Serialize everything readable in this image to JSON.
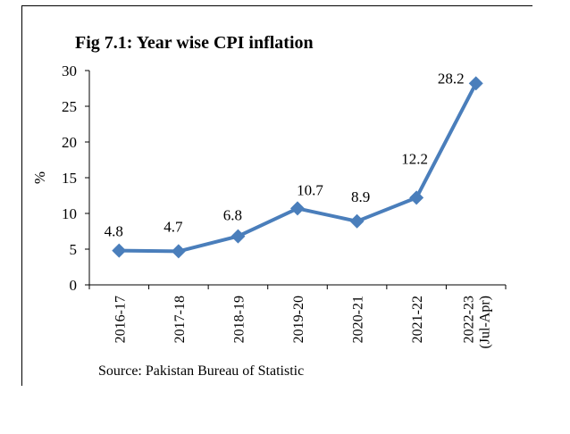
{
  "chart_data": {
    "type": "line",
    "title": "Fig 7.1: Year wise CPI inflation",
    "ylabel": "%",
    "xlabel": "",
    "ylim": [
      0,
      30
    ],
    "yticks": [
      "0",
      "5",
      "10",
      "15",
      "20",
      "25",
      "30"
    ],
    "categories": [
      [
        "2016-17"
      ],
      [
        "2017-18"
      ],
      [
        "2018-19"
      ],
      [
        "2019-20"
      ],
      [
        "2020-21"
      ],
      [
        "2021-22"
      ],
      [
        "2022-23",
        "(Jul-Apr)"
      ]
    ],
    "series": [
      {
        "values": [
          4.8,
          4.7,
          6.8,
          10.7,
          8.9,
          12.2,
          28.2
        ],
        "labels": [
          "4.8",
          "4.7",
          "6.8",
          "10.7",
          "8.9",
          "12.2",
          "28.2"
        ],
        "color": "#4a7ebb",
        "marker": "diamond"
      }
    ],
    "grid": false,
    "legend": "none",
    "source": "Source: Pakistan Bureau of Statistic"
  }
}
